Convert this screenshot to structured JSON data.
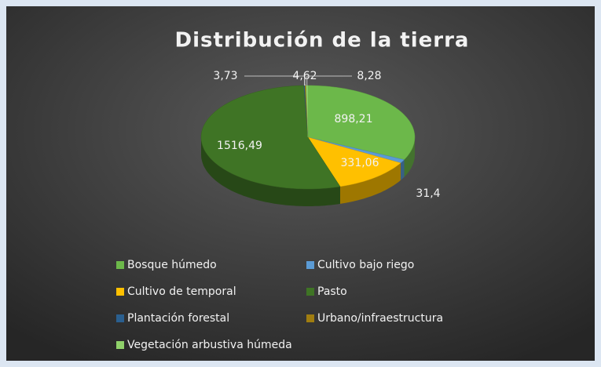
{
  "chart_data": {
    "type": "pie",
    "title": "Distribución de la tierra",
    "categories": [
      "Bosque húmedo",
      "Cultivo bajo riego",
      "Cultivo de temporal",
      "Pasto",
      "Plantación forestal",
      "Urbano/infraestructura",
      "Vegetación arbustiva húmeda"
    ],
    "values": [
      898.21,
      31.4,
      331.06,
      1516.49,
      3.73,
      4.62,
      8.28
    ],
    "value_labels": [
      "898,21",
      "31,4",
      "331,06",
      "1516,49",
      "3,73",
      "4,62",
      "8,28"
    ],
    "colors": [
      "#6cb84a",
      "#5b9bd5",
      "#ffc000",
      "#3f7425",
      "#2a5f8f",
      "#a07d10",
      "#8fd16a"
    ],
    "legend": "bottom"
  }
}
